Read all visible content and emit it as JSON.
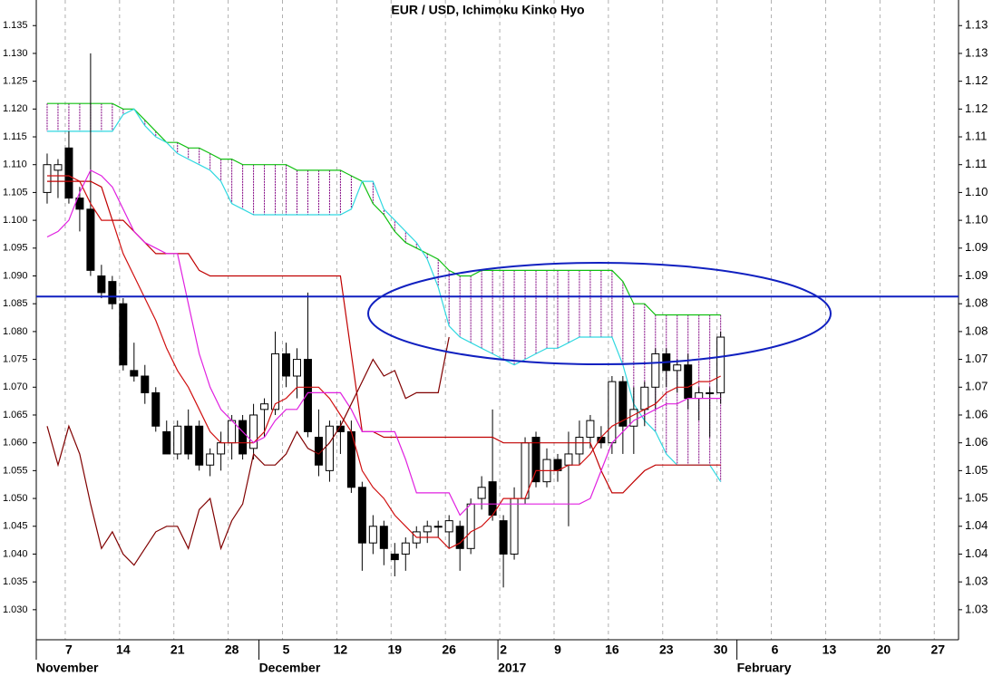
{
  "chart_data": {
    "type": "ichimoku",
    "title": "EUR / USD, Ichimoku Kinko Hyo",
    "x": [
      0,
      1,
      2,
      3,
      4,
      5,
      6,
      7,
      8,
      9,
      10,
      11,
      12,
      13,
      14,
      15,
      16,
      17,
      18,
      19,
      20,
      21,
      22,
      23,
      24,
      25,
      26,
      27,
      28,
      29,
      30,
      31,
      32,
      33,
      34,
      35,
      36,
      37,
      38,
      39,
      40,
      41,
      42,
      43,
      44,
      45,
      46,
      47,
      48,
      49,
      50,
      51,
      52,
      53,
      54,
      55,
      56,
      57,
      58,
      59,
      60,
      61,
      62
    ],
    "candles": {
      "up_color": "#ffffff",
      "down_color": "#000000",
      "edge_color": "#000000",
      "open": [
        1.105,
        1.109,
        1.113,
        1.104,
        1.102,
        1.09,
        1.089,
        1.085,
        1.073,
        1.072,
        1.069,
        1.062,
        1.058,
        1.063,
        1.063,
        1.056,
        1.058,
        1.06,
        1.064,
        1.059,
        1.066,
        1.066,
        1.076,
        1.072,
        1.075,
        1.061,
        1.055,
        1.063,
        1.062,
        1.052,
        1.042,
        1.045,
        1.04,
        1.04,
        1.042,
        1.044,
        1.045,
        1.044,
        1.045,
        1.041,
        1.05,
        1.053,
        1.046,
        1.04,
        1.05,
        1.061,
        1.053,
        1.057,
        1.056,
        1.058,
        1.061,
        1.061,
        1.06,
        1.071,
        1.063,
        1.066,
        1.07,
        1.076,
        1.073,
        1.074,
        1.068,
        1.069,
        1.069
      ],
      "high": [
        1.112,
        1.111,
        1.116,
        1.106,
        1.13,
        1.092,
        1.09,
        1.086,
        1.078,
        1.074,
        1.07,
        1.064,
        1.064,
        1.066,
        1.064,
        1.059,
        1.062,
        1.065,
        1.065,
        1.067,
        1.068,
        1.08,
        1.078,
        1.077,
        1.087,
        1.066,
        1.064,
        1.064,
        1.064,
        1.053,
        1.047,
        1.046,
        1.042,
        1.043,
        1.045,
        1.046,
        1.046,
        1.047,
        1.046,
        1.05,
        1.054,
        1.066,
        1.047,
        1.052,
        1.061,
        1.062,
        1.059,
        1.058,
        1.062,
        1.064,
        1.065,
        1.063,
        1.072,
        1.072,
        1.07,
        1.071,
        1.077,
        1.077,
        1.075,
        1.076,
        1.07,
        1.07,
        1.08
      ],
      "low": [
        1.103,
        1.104,
        1.103,
        1.098,
        1.09,
        1.086,
        1.084,
        1.073,
        1.071,
        1.067,
        1.062,
        1.058,
        1.057,
        1.057,
        1.055,
        1.054,
        1.055,
        1.057,
        1.057,
        1.057,
        1.061,
        1.065,
        1.07,
        1.068,
        1.061,
        1.054,
        1.053,
        1.058,
        1.051,
        1.037,
        1.04,
        1.038,
        1.036,
        1.037,
        1.041,
        1.042,
        1.043,
        1.041,
        1.037,
        1.04,
        1.048,
        1.046,
        1.034,
        1.039,
        1.049,
        1.052,
        1.052,
        1.053,
        1.045,
        1.056,
        1.059,
        1.059,
        1.058,
        1.058,
        1.058,
        1.063,
        1.066,
        1.07,
        1.069,
        1.066,
        1.064,
        1.061,
        1.067
      ],
      "close": [
        1.11,
        1.11,
        1.104,
        1.102,
        1.091,
        1.087,
        1.085,
        1.074,
        1.072,
        1.069,
        1.063,
        1.058,
        1.063,
        1.058,
        1.056,
        1.058,
        1.06,
        1.064,
        1.058,
        1.065,
        1.067,
        1.076,
        1.072,
        1.075,
        1.062,
        1.056,
        1.063,
        1.062,
        1.052,
        1.042,
        1.045,
        1.041,
        1.039,
        1.042,
        1.044,
        1.045,
        1.045,
        1.046,
        1.041,
        1.049,
        1.052,
        1.047,
        1.04,
        1.05,
        1.06,
        1.053,
        1.057,
        1.055,
        1.058,
        1.061,
        1.064,
        1.06,
        1.071,
        1.063,
        1.066,
        1.07,
        1.076,
        1.073,
        1.074,
        1.068,
        1.069,
        1.069,
        1.079
      ]
    },
    "series": [
      {
        "color": "#d01010",
        "values": [
          1.108,
          1.108,
          1.108,
          1.107,
          1.103,
          1.1,
          1.1,
          1.094,
          1.09,
          1.086,
          1.082,
          1.077,
          1.073,
          1.07,
          1.066,
          1.062,
          1.06,
          1.06,
          1.06,
          1.06,
          1.062,
          1.067,
          1.068,
          1.07,
          1.07,
          1.07,
          1.068,
          1.065,
          1.062,
          1.055,
          1.052,
          1.05,
          1.047,
          1.045,
          1.043,
          1.043,
          1.043,
          1.041,
          1.042,
          1.044,
          1.045,
          1.047,
          1.05,
          1.05,
          1.05,
          1.055,
          1.055,
          1.055,
          1.056,
          1.056,
          1.058,
          1.061,
          1.063,
          1.064,
          1.065,
          1.066,
          1.067,
          1.069,
          1.07,
          1.07,
          1.071,
          1.071,
          1.072
        ]
      },
      {
        "color": "#c00000",
        "values": [
          1.107,
          1.107,
          1.107,
          1.107,
          1.107,
          1.106,
          1.1,
          1.1,
          1.098,
          1.096,
          1.094,
          1.094,
          1.094,
          1.094,
          1.091,
          1.09,
          1.09,
          1.09,
          1.09,
          1.09,
          1.09,
          1.09,
          1.09,
          1.09,
          1.09,
          1.09,
          1.09,
          1.09,
          1.076,
          1.062,
          1.062,
          1.061,
          1.061,
          1.061,
          1.061,
          1.061,
          1.061,
          1.061,
          1.061,
          1.061,
          1.061,
          1.061,
          1.06,
          1.06,
          1.06,
          1.06,
          1.06,
          1.06,
          1.06,
          1.06,
          1.06,
          1.055,
          1.051,
          1.051,
          1.053,
          1.055,
          1.056,
          1.056,
          1.056,
          1.056,
          1.056,
          1.056,
          1.056
        ]
      },
      {
        "color": "#e020e0",
        "values": [
          1.097,
          1.098,
          1.1,
          1.105,
          1.109,
          1.108,
          1.106,
          1.102,
          1.098,
          1.096,
          1.095,
          1.094,
          1.094,
          1.085,
          1.076,
          1.07,
          1.066,
          1.064,
          1.062,
          1.06,
          1.061,
          1.064,
          1.066,
          1.066,
          1.069,
          1.069,
          1.069,
          1.069,
          1.066,
          1.062,
          1.062,
          1.062,
          1.062,
          1.057,
          1.051,
          1.051,
          1.051,
          1.051,
          1.047,
          1.049,
          1.049,
          1.049,
          1.049,
          1.049,
          1.049,
          1.049,
          1.049,
          1.049,
          1.049,
          1.049,
          1.05,
          1.055,
          1.06,
          1.062,
          1.064,
          1.065,
          1.066,
          1.067,
          1.067,
          1.068,
          1.068,
          1.068,
          1.068
        ]
      },
      {
        "color": "#800000",
        "values": [
          1.063,
          1.056,
          1.063,
          1.058,
          1.049,
          1.041,
          1.044,
          1.04,
          1.038,
          1.041,
          1.044,
          1.045,
          1.045,
          1.041,
          1.048,
          1.05,
          1.041,
          1.046,
          1.049,
          1.058,
          1.056,
          1.056,
          1.058,
          1.062,
          1.059,
          1.058,
          1.06,
          1.063,
          1.067,
          1.071,
          1.075,
          1.072,
          1.073,
          1.068,
          1.069,
          1.069,
          1.069,
          1.079,
          null,
          null,
          null,
          null,
          null,
          null,
          null,
          null,
          null,
          null,
          null,
          null,
          null,
          null,
          null,
          null,
          null,
          null,
          null,
          null,
          null,
          null,
          null,
          null,
          null
        ]
      }
    ],
    "cloud": {
      "hatch_color": "#800080",
      "series": [
        {
          "color": "#10c010",
          "values": [
            1.121,
            1.121,
            1.121,
            1.121,
            1.121,
            1.121,
            1.121,
            1.12,
            1.12,
            1.118,
            1.116,
            1.114,
            1.114,
            1.113,
            1.113,
            1.112,
            1.111,
            1.111,
            1.11,
            1.11,
            1.11,
            1.11,
            1.11,
            1.109,
            1.109,
            1.109,
            1.109,
            1.109,
            1.108,
            1.107,
            1.103,
            1.101,
            1.098,
            1.096,
            1.095,
            1.094,
            1.093,
            1.091,
            1.09,
            1.09,
            1.091,
            1.091,
            1.091,
            1.091,
            1.091,
            1.091,
            1.091,
            1.091,
            1.091,
            1.091,
            1.091,
            1.091,
            1.091,
            1.089,
            1.085,
            1.085,
            1.083,
            1.083,
            1.083,
            1.083,
            1.083,
            1.083,
            1.083
          ]
        },
        {
          "color": "#30d8e0",
          "values": [
            1.116,
            1.116,
            1.116,
            1.116,
            1.116,
            1.116,
            1.116,
            1.119,
            1.12,
            1.117,
            1.115,
            1.114,
            1.112,
            1.111,
            1.11,
            1.109,
            1.107,
            1.103,
            1.102,
            1.101,
            1.101,
            1.101,
            1.101,
            1.101,
            1.101,
            1.101,
            1.101,
            1.101,
            1.102,
            1.107,
            1.107,
            1.102,
            1.1,
            1.098,
            1.096,
            1.093,
            1.088,
            1.081,
            1.079,
            1.078,
            1.077,
            1.076,
            1.075,
            1.074,
            1.075,
            1.076,
            1.077,
            1.077,
            1.078,
            1.079,
            1.079,
            1.079,
            1.079,
            1.074,
            1.067,
            1.064,
            1.062,
            1.058,
            1.056,
            1.056,
            1.056,
            1.056,
            1.053
          ]
        }
      ]
    },
    "hline": 1.0863,
    "hline_color": "#1020c0",
    "xlim": [
      -1,
      83.9
    ],
    "xticks": [
      {
        "value": 2,
        "label": "7"
      },
      {
        "value": 7,
        "label": "14"
      },
      {
        "value": 12,
        "label": "21"
      },
      {
        "value": 17,
        "label": "28"
      },
      {
        "value": 22,
        "label": "5"
      },
      {
        "value": 27,
        "label": "12"
      },
      {
        "value": 32,
        "label": "19"
      },
      {
        "value": 37,
        "label": "26"
      },
      {
        "value": 42,
        "label": "2"
      },
      {
        "value": 47,
        "label": "9"
      },
      {
        "value": 52,
        "label": "16"
      },
      {
        "value": 57,
        "label": "23"
      },
      {
        "value": 62,
        "label": "30"
      },
      {
        "value": 67,
        "label": "6"
      },
      {
        "value": 72,
        "label": "13"
      },
      {
        "value": 77,
        "label": "20"
      },
      {
        "value": 82,
        "label": "27"
      }
    ],
    "month_ticks": [
      {
        "value": -1,
        "label": "November"
      },
      {
        "value": 19.5,
        "label": "December"
      },
      {
        "value": 41.5,
        "label": "2017"
      },
      {
        "value": 63.5,
        "label": "February"
      }
    ],
    "ylim": [
      1.0246,
      1.1396
    ],
    "yticks": [
      {
        "value": 1.03,
        "label": "1.030"
      },
      1.035,
      {
        "value": 1.04,
        "label": "1.040"
      },
      1.045,
      {
        "value": 1.05,
        "label": "1.050"
      },
      1.055,
      {
        "value": 1.06,
        "label": "1.060"
      },
      1.065,
      {
        "value": 1.07,
        "label": "1.070"
      },
      1.075,
      {
        "value": 1.08,
        "label": "1.080"
      },
      1.085,
      {
        "value": 1.09,
        "label": "1.090"
      },
      1.095,
      {
        "value": 1.1,
        "label": "1.100"
      },
      1.105,
      {
        "value": 1.11,
        "label": "1.110"
      },
      1.115,
      {
        "value": 1.12,
        "label": "1.120"
      },
      1.125,
      {
        "value": 1.13,
        "label": "1.130"
      },
      1.135
    ],
    "y2lim": [
      1.0246,
      1.1396
    ],
    "y2ticks": [
      {
        "value": 1.03,
        "label": "1.03"
      },
      {
        "value": 1.035,
        "label": "1.03"
      },
      {
        "value": 1.04,
        "label": "1.04"
      },
      {
        "value": 1.045,
        "label": "1.04"
      },
      {
        "value": 1.05,
        "label": "1.05"
      },
      {
        "value": 1.055,
        "label": "1.05"
      },
      {
        "value": 1.06,
        "label": "1.06"
      },
      {
        "value": 1.065,
        "label": "1.06"
      },
      {
        "value": 1.07,
        "label": "1.07"
      },
      {
        "value": 1.075,
        "label": "1.07"
      },
      {
        "value": 1.08,
        "label": "1.08"
      },
      {
        "value": 1.085,
        "label": "1.08"
      },
      {
        "value": 1.09,
        "label": "1.09"
      },
      {
        "value": 1.095,
        "label": "1.09"
      },
      {
        "value": 1.1,
        "label": "1.10"
      },
      {
        "value": 1.105,
        "label": "1.10"
      },
      {
        "value": 1.11,
        "label": "1.11"
      },
      {
        "value": 1.115,
        "label": "1.11"
      },
      {
        "value": 1.12,
        "label": "1.12"
      },
      {
        "value": 1.125,
        "label": "1.12"
      },
      {
        "value": 1.13,
        "label": "1.13"
      },
      {
        "value": 1.135,
        "label": "1.13"
      }
    ],
    "grid": true
  }
}
